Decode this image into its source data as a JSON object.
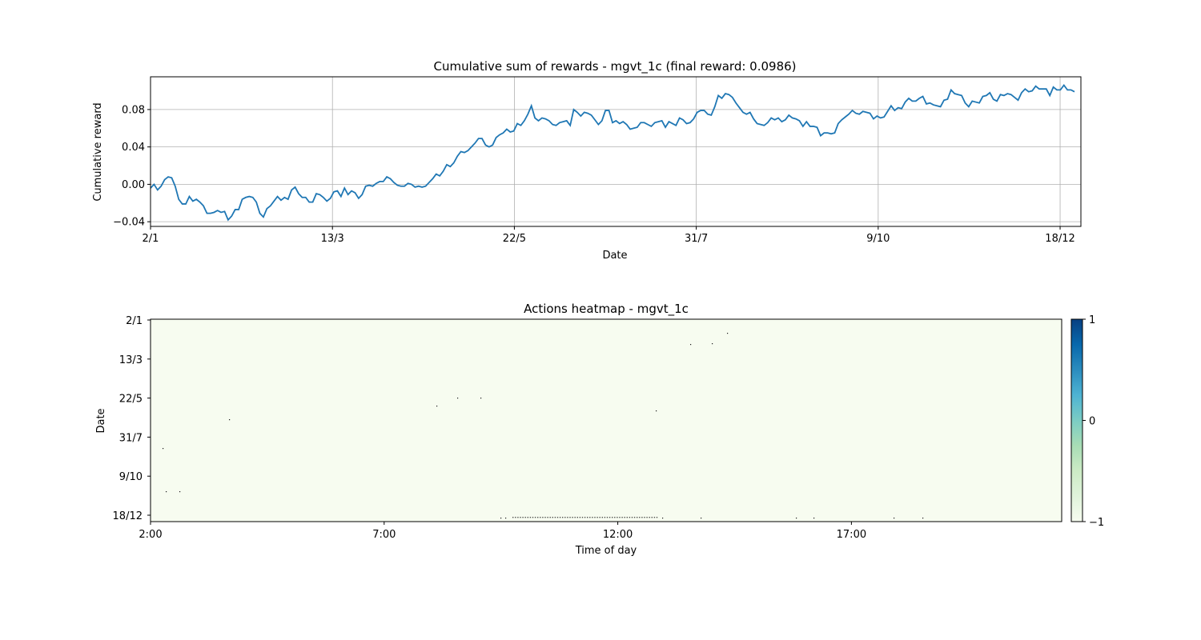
{
  "chart_data": [
    {
      "type": "line",
      "title": "Cumulative sum of rewards - mgvt_1c (final reward: 0.0986)",
      "xlabel": "Date",
      "ylabel": "Cumulative reward",
      "x_tick_labels": [
        "2/1",
        "13/3",
        "22/5",
        "31/7",
        "9/10",
        "18/12"
      ],
      "y_ticks": [
        -0.04,
        0.0,
        0.04,
        0.08
      ],
      "y_tick_labels": [
        "−0.04",
        "0.00",
        "0.04",
        "0.08"
      ],
      "ylim": [
        -0.045,
        0.115
      ],
      "xlim_days": [
        0,
        358
      ],
      "grid": true,
      "line_color": "#1f77b4",
      "series": [
        {
          "values": [
            -0.004,
            0.0,
            -0.006,
            -0.002,
            0.005,
            0.008,
            0.007,
            -0.002,
            -0.016,
            -0.021,
            -0.021,
            -0.013,
            -0.018,
            -0.016,
            -0.019,
            -0.023,
            -0.031,
            -0.031,
            -0.03,
            -0.028,
            -0.03,
            -0.029,
            -0.038,
            -0.034,
            -0.027,
            -0.027,
            -0.016,
            -0.014,
            -0.013,
            -0.014,
            -0.019,
            -0.031,
            -0.035,
            -0.026,
            -0.023,
            -0.018,
            -0.013,
            -0.017,
            -0.014,
            -0.016,
            -0.006,
            -0.003,
            -0.01,
            -0.014,
            -0.014,
            -0.019,
            -0.019,
            -0.01,
            -0.011,
            -0.014,
            -0.018,
            -0.015,
            -0.008,
            -0.007,
            -0.013,
            -0.004,
            -0.011,
            -0.007,
            -0.009,
            -0.015,
            -0.011,
            -0.002,
            -0.001,
            -0.002,
            0.001,
            0.003,
            0.003,
            0.008,
            0.006,
            0.002,
            -0.001,
            -0.002,
            -0.002,
            0.001,
            0.0,
            -0.003,
            -0.002,
            -0.003,
            -0.002,
            0.002,
            0.006,
            0.011,
            0.009,
            0.014,
            0.021,
            0.019,
            0.023,
            0.03,
            0.035,
            0.034,
            0.036,
            0.04,
            0.044,
            0.049,
            0.049,
            0.042,
            0.04,
            0.042,
            0.05,
            0.053,
            0.055,
            0.059,
            0.056,
            0.057,
            0.065,
            0.063,
            0.068,
            0.075,
            0.084,
            0.071,
            0.068,
            0.071,
            0.07,
            0.068,
            0.064,
            0.063,
            0.066,
            0.067,
            0.068,
            0.063,
            0.08,
            0.077,
            0.073,
            0.077,
            0.076,
            0.074,
            0.069,
            0.064,
            0.068,
            0.079,
            0.079,
            0.066,
            0.068,
            0.065,
            0.067,
            0.064,
            0.059,
            0.06,
            0.061,
            0.066,
            0.066,
            0.064,
            0.062,
            0.066,
            0.067,
            0.068,
            0.061,
            0.067,
            0.065,
            0.063,
            0.071,
            0.069,
            0.065,
            0.066,
            0.07,
            0.077,
            0.079,
            0.079,
            0.075,
            0.074,
            0.083,
            0.095,
            0.092,
            0.097,
            0.096,
            0.093,
            0.087,
            0.082,
            0.077,
            0.075,
            0.077,
            0.07,
            0.065,
            0.064,
            0.063,
            0.066,
            0.071,
            0.069,
            0.071,
            0.067,
            0.069,
            0.074,
            0.071,
            0.07,
            0.068,
            0.062,
            0.067,
            0.062,
            0.062,
            0.061,
            0.052,
            0.055,
            0.055,
            0.054,
            0.055,
            0.065,
            0.069,
            0.072,
            0.075,
            0.079,
            0.076,
            0.075,
            0.078,
            0.077,
            0.076,
            0.07,
            0.073,
            0.071,
            0.072,
            0.078,
            0.084,
            0.079,
            0.082,
            0.081,
            0.088,
            0.092,
            0.089,
            0.089,
            0.092,
            0.094,
            0.086,
            0.087,
            0.085,
            0.084,
            0.083,
            0.09,
            0.091,
            0.101,
            0.097,
            0.096,
            0.095,
            0.087,
            0.083,
            0.089,
            0.088,
            0.087,
            0.094,
            0.095,
            0.098,
            0.091,
            0.089,
            0.096,
            0.095,
            0.097,
            0.096,
            0.093,
            0.09,
            0.098,
            0.102,
            0.099,
            0.1,
            0.105,
            0.102,
            0.102,
            0.102,
            0.095,
            0.104,
            0.101,
            0.101,
            0.106,
            0.101,
            0.101,
            0.099
          ]
        }
      ]
    },
    {
      "type": "heatmap",
      "title": "Actions heatmap - mgvt_1c",
      "xlabel": "Time of day",
      "ylabel": "Date",
      "x_tick_labels": [
        "2:00",
        "7:00",
        "12:00",
        "17:00"
      ],
      "y_tick_labels": [
        "2/1",
        "13/3",
        "22/5",
        "31/7",
        "9/10",
        "18/12"
      ],
      "colorbar": {
        "ticks": [
          1,
          0,
          -1
        ],
        "tick_labels": [
          "1",
          "0",
          "−1"
        ],
        "range": [
          -1,
          1
        ],
        "colormap": "GnBu",
        "colors": [
          "#f7fcf0",
          "#e0f3db",
          "#ccebc5",
          "#a8ddb5",
          "#7bccc4",
          "#4eb3d3",
          "#2b8cbe",
          "#0868ac",
          "#084081"
        ]
      },
      "background_value": -1,
      "background_color": "#f7fcf0",
      "marks_note_color": "#1a1a1a"
    }
  ]
}
